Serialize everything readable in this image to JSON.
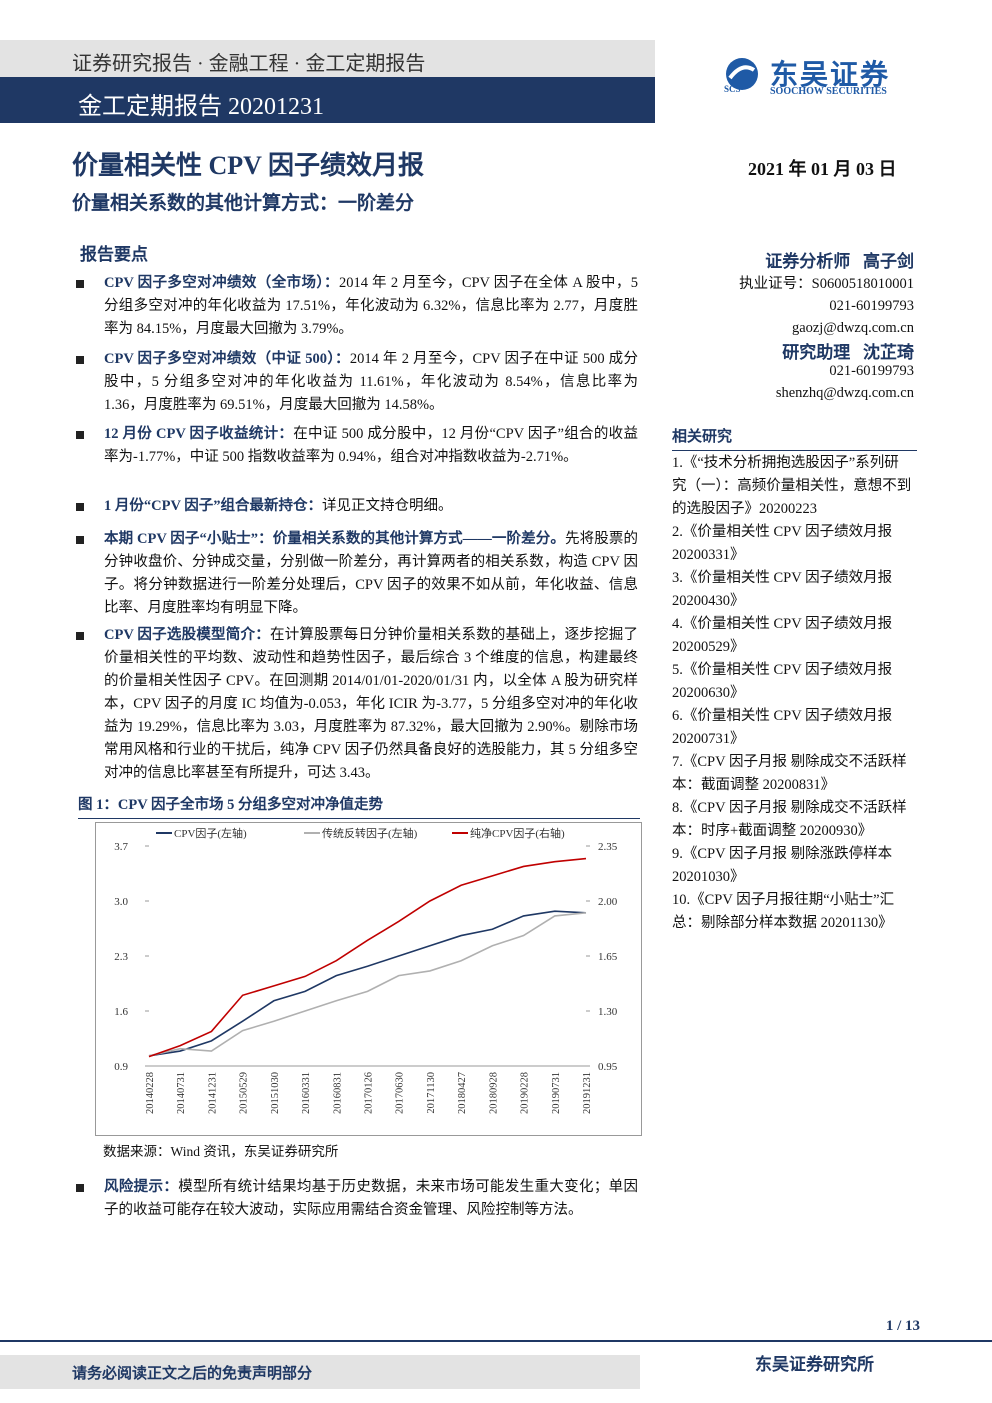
{
  "header": {
    "series_line": "证券研究报告 · 金融工程 · 金工定期报告",
    "banner": "金工定期报告 20201231",
    "logo_cn": "东吴证券",
    "logo_en": "SOOCHOW SECURITIES",
    "logo_abbr": "SCS"
  },
  "title": "价量相关性 CPV 因子绩效月报",
  "date": "2021 年 01 月 03 日",
  "subtitle": "价量相关系数的其他计算方式：一阶差分",
  "summary": {
    "heading": "报告要点",
    "points": [
      {
        "lead": "CPV 因子多空对冲绩效（全市场）：",
        "text": "2014 年 2 月至今，CPV 因子在全体 A 股中，5 分组多空对冲的年化收益为 17.51%，年化波动为 6.32%，信息比率为 2.77，月度胜率为 84.15%，月度最大回撤为 3.79%。"
      },
      {
        "lead": "CPV 因子多空对冲绩效（中证 500）：",
        "text": "2014 年 2 月至今，CPV 因子在中证 500 成分股中，5 分组多空对冲的年化收益为 11.61%，年化波动为 8.54%，信息比率为 1.36，月度胜率为 69.51%，月度最大回撤为 14.58%。"
      },
      {
        "lead": "12 月份 CPV 因子收益统计：",
        "text": "在中证 500 成分股中，12 月份“CPV 因子”组合的收益率为-1.77%，中证 500 指数收益率为 0.94%，组合对冲指数收益为-2.71%。"
      },
      {
        "lead": "1 月份“CPV 因子”组合最新持仓：",
        "text": "详见正文持仓明细。"
      },
      {
        "lead": "本期 CPV 因子“小贴士”：价量相关系数的其他计算方式——一阶差分。",
        "text": "先将股票的分钟收盘价、分钟成交量，分别做一阶差分，再计算两者的相关系数，构造 CPV 因子。将分钟数据进行一阶差分处理后，CPV 因子的效果不如从前，年化收益、信息比率、月度胜率均有明显下降。"
      },
      {
        "lead": "CPV 因子选股模型简介：",
        "text": "在计算股票每日分钟价量相关系数的基础上，逐步挖掘了价量相关性的平均数、波动性和趋势性因子，最后综合 3 个维度的信息，构建最终的价量相关性因子 CPV。在回测期 2014/01/01-2020/01/31 内，以全体 A 股为研究样本，CPV 因子的月度 IC 均值为-0.053，年化 ICIR 为-3.77，5 分组多空对冲的年化收益为 19.29%，信息比率为 3.03，月度胜率为 87.32%，最大回撤为 2.90%。剔除市场常用风格和行业的干扰后，纯净 CPV 因子仍然具备良好的选股能力，其 5 分组多空对冲的信息比率甚至有所提升，可达 3.43。"
      }
    ]
  },
  "figure": {
    "caption": "图 1：CPV 因子全市场 5 分组多空对冲净值走势",
    "source": "数据来源：Wind 资讯，东吴证券研究所"
  },
  "chart_data": {
    "type": "line",
    "categories": [
      "20140228",
      "20140731",
      "20141231",
      "20150529",
      "20151030",
      "20160331",
      "20160831",
      "20170126",
      "20170630",
      "20171130",
      "20180427",
      "20180928",
      "20190228",
      "20190731",
      "20191231"
    ],
    "series": [
      {
        "name": "CPV因子(左轴)",
        "color": "#1f3864",
        "values": [
          1.03,
          1.09,
          1.22,
          1.47,
          1.73,
          1.85,
          2.05,
          2.17,
          2.3,
          2.43,
          2.56,
          2.64,
          2.81,
          2.87,
          2.85
        ]
      },
      {
        "name": "传统反转因子(左轴)",
        "color": "#b0b0b0",
        "values": [
          1.03,
          1.12,
          1.09,
          1.35,
          1.47,
          1.6,
          1.73,
          1.85,
          2.05,
          2.11,
          2.24,
          2.43,
          2.56,
          2.81,
          2.85
        ]
      },
      {
        "name": "纯净CPV因子(右轴)",
        "color": "#c00000",
        "axis": "y2",
        "values": [
          1.01,
          1.08,
          1.17,
          1.4,
          1.46,
          1.52,
          1.62,
          1.75,
          1.87,
          2.0,
          2.1,
          2.16,
          2.22,
          2.25,
          2.27
        ]
      }
    ],
    "ylim": [
      0.9,
      3.7
    ],
    "yticks": [
      0.9,
      1.6,
      2.3,
      {
        "value": 3,
        "label": "3.0"
      },
      3.7
    ],
    "y2lim": [
      0.95,
      2.35
    ],
    "y2ticks": [
      0.95,
      {
        "value": 1.3,
        "label": "1.30"
      },
      1.65,
      {
        "value": 2,
        "label": "2.00"
      },
      2.35
    ],
    "grid": false
  },
  "risk": {
    "lead": "风险提示：",
    "text": "模型所有统计结果均基于历史数据，未来市场可能发生重大变化；单因子的收益可能存在较大波动，实际应用需结合资金管理、风险控制等方法。"
  },
  "analyst": {
    "role": "证券分析师",
    "name": "高子剑",
    "cert": "执业证号：S0600518010001",
    "phone": "021-60199793",
    "email": "gaozj@dwzq.com.cn"
  },
  "assistant": {
    "role": "研究助理",
    "name": "沈芷琦",
    "phone": "021-60199793",
    "email": "shenzhq@dwzq.com.cn"
  },
  "related": {
    "heading": "相关研究",
    "items": [
      "1.《“技术分析拥抱选股因子”系列研究（一）：高频价量相关性，意想不到的选股因子》20200223",
      "2.《价量相关性 CPV 因子绩效月报 20200331》",
      "3.《价量相关性 CPV 因子绩效月报 20200430》",
      "4.《价量相关性 CPV 因子绩效月报 20200529》",
      "5.《价量相关性 CPV 因子绩效月报 20200630》",
      "6.《价量相关性 CPV 因子绩效月报 20200731》",
      "7.《CPV 因子月报 剔除成交不活跃样本：截面调整 20200831》",
      "8.《CPV 因子月报 剔除成交不活跃样本：时序+截面调整 20200930》",
      "9.《CPV 因子月报 剔除涨跌停样本 20201030》",
      "10.《CPV 因子月报往期“小贴士”汇总：剔除部分样本数据 20201130》"
    ]
  },
  "footer": {
    "page": "1 / 13",
    "disclaimer": "请务必阅读正文之后的免责声明部分",
    "org": "东吴证券研究所"
  }
}
